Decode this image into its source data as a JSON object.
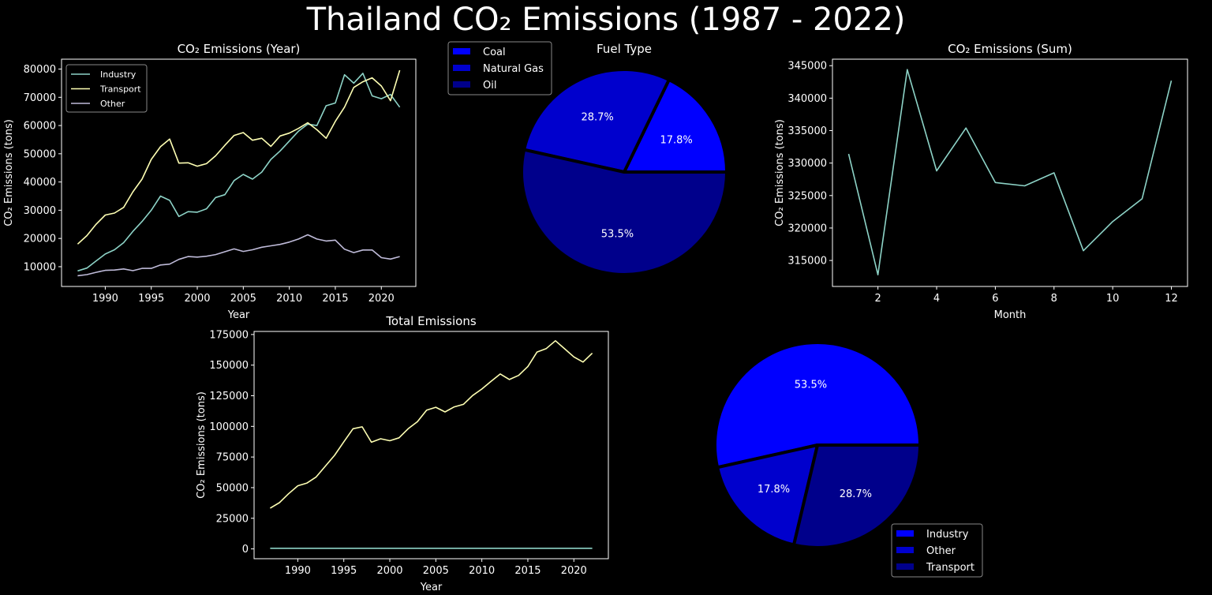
{
  "page": {
    "title": "Thailand CO₂ Emissions (1987 - 2022)"
  },
  "colors": {
    "background": "#000000",
    "axis": "#ffffff",
    "series": [
      "#8dd3c7",
      "#feffb3",
      "#bfbbd9"
    ],
    "pie": [
      "#0000ff",
      "#0000cd",
      "#00008b"
    ]
  },
  "chart_data": [
    {
      "id": "yearly",
      "type": "line",
      "title": "CO₂ Emissions (Year)",
      "xlabel": "Year",
      "ylabel": "CO₂ Emissions (tons)",
      "xlim": [
        1985.25,
        2023.75
      ],
      "ylim": [
        3000,
        83500
      ],
      "xticks": [
        1990,
        1995,
        2000,
        2005,
        2010,
        2015,
        2020
      ],
      "yticks": [
        10000,
        20000,
        30000,
        40000,
        50000,
        60000,
        70000,
        80000
      ],
      "legend_position": "upper-left",
      "x": [
        1987,
        1988,
        1989,
        1990,
        1991,
        1992,
        1993,
        1994,
        1995,
        1996,
        1997,
        1998,
        1999,
        2000,
        2001,
        2002,
        2003,
        2004,
        2005,
        2006,
        2007,
        2008,
        2009,
        2010,
        2011,
        2012,
        2013,
        2014,
        2015,
        2016,
        2017,
        2018,
        2019,
        2020,
        2021,
        2022
      ],
      "series": [
        {
          "name": "Industry",
          "values": [
            8500,
            9500,
            12000,
            14500,
            16000,
            18500,
            22500,
            26000,
            30000,
            35000,
            33500,
            27800,
            29500,
            29300,
            30500,
            34500,
            35500,
            40500,
            42700,
            41000,
            43500,
            48000,
            51000,
            54500,
            58000,
            60500,
            60000,
            67000,
            68000,
            78000,
            75000,
            78500,
            70500,
            69500,
            71000,
            66500
          ]
        },
        {
          "name": "Transport",
          "values": [
            18000,
            21000,
            25000,
            28300,
            29000,
            31000,
            36500,
            41000,
            48000,
            52500,
            55200,
            46700,
            46800,
            45600,
            46500,
            49300,
            53000,
            56500,
            57500,
            54800,
            55500,
            52600,
            56300,
            57300,
            59000,
            61000,
            58500,
            55500,
            61500,
            66500,
            73500,
            75500,
            76900,
            74000,
            68800,
            79600
          ]
        },
        {
          "name": "Other",
          "values": [
            6800,
            7200,
            8000,
            8700,
            8800,
            9200,
            8600,
            9400,
            9400,
            10600,
            10900,
            12600,
            13600,
            13400,
            13700,
            14300,
            15300,
            16300,
            15400,
            16000,
            16900,
            17400,
            17900,
            18700,
            19800,
            21300,
            19800,
            19100,
            19400,
            16200,
            15000,
            15900,
            15900,
            13200,
            12700,
            13600
          ]
        }
      ]
    },
    {
      "id": "fuel",
      "type": "pie",
      "title": "Fuel Type",
      "legend_position": "upper-left",
      "slices": [
        {
          "label": "Coal",
          "value": 17.8,
          "pct": "17.8%"
        },
        {
          "label": "Natural Gas",
          "value": 28.7,
          "pct": "28.7%"
        },
        {
          "label": "Oil",
          "value": 53.5,
          "pct": "53.5%"
        }
      ]
    },
    {
      "id": "monthly",
      "type": "line",
      "title": "CO₂ Emissions (Sum)",
      "xlabel": "Month",
      "ylabel": "CO₂ Emissions (tons)",
      "xlim": [
        0.45,
        12.55
      ],
      "ylim": [
        311000,
        346000
      ],
      "xticks": [
        2,
        4,
        6,
        8,
        10,
        12
      ],
      "yticks": [
        315000,
        320000,
        325000,
        330000,
        335000,
        340000,
        345000
      ],
      "x": [
        1,
        2,
        3,
        4,
        5,
        6,
        7,
        8,
        9,
        10,
        11,
        12
      ],
      "series": [
        {
          "name": "",
          "values": [
            331400,
            312800,
            344400,
            328800,
            335400,
            327000,
            326500,
            328500,
            316500,
            321000,
            324500,
            342700
          ]
        }
      ]
    },
    {
      "id": "total",
      "type": "line",
      "title": "Total Emissions",
      "xlabel": "Year",
      "ylabel": "CO₂ Emissions (tons)",
      "xlim": [
        1985.25,
        2023.75
      ],
      "ylim": [
        -8000,
        177500
      ],
      "xticks": [
        1990,
        1995,
        2000,
        2005,
        2010,
        2015,
        2020
      ],
      "yticks": [
        0,
        25000,
        50000,
        75000,
        100000,
        125000,
        150000,
        175000
      ],
      "x": [
        1987,
        1988,
        1989,
        1990,
        1991,
        1992,
        1993,
        1994,
        1995,
        1996,
        1997,
        1998,
        1999,
        2000,
        2001,
        2002,
        2003,
        2004,
        2005,
        2006,
        2007,
        2008,
        2009,
        2010,
        2011,
        2012,
        2013,
        2014,
        2015,
        2016,
        2017,
        2018,
        2019,
        2020,
        2021,
        2022
      ],
      "series": [
        {
          "name": "",
          "values": [
            33300,
            37700,
            45000,
            51500,
            53800,
            58700,
            67600,
            76400,
            87400,
            98100,
            99600,
            87100,
            89900,
            88300,
            90700,
            98100,
            103800,
            113200,
            115600,
            111800,
            115900,
            118000,
            125200,
            130500,
            136800,
            142800,
            138300,
            141600,
            148900,
            160700,
            163500,
            169900,
            163300,
            156700,
            152500,
            159700
          ]
        },
        {
          "name": "",
          "values": [
            500,
            500,
            500,
            500,
            500,
            500,
            500,
            500,
            500,
            500,
            500,
            500,
            500,
            500,
            500,
            500,
            500,
            500,
            500,
            500,
            500,
            500,
            500,
            500,
            500,
            500,
            500,
            500,
            500,
            500,
            500,
            500,
            500,
            500,
            500,
            500
          ]
        }
      ]
    },
    {
      "id": "sector",
      "type": "pie",
      "title": "",
      "legend_position": "lower-right",
      "slices": [
        {
          "label": "Industry",
          "value": 53.5,
          "pct": "53.5%"
        },
        {
          "label": "Other",
          "value": 17.8,
          "pct": "17.8%"
        },
        {
          "label": "Transport",
          "value": 28.7,
          "pct": "28.7%"
        }
      ]
    }
  ]
}
